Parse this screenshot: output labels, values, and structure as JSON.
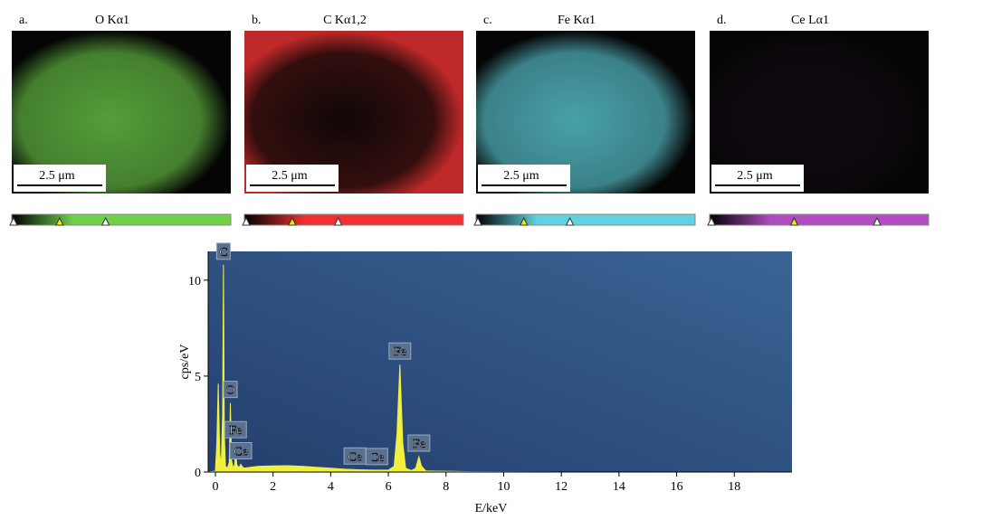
{
  "panels": [
    {
      "label": "a.",
      "title": "O Kα1",
      "scale": "2.5 μm",
      "color": "#6fd04a"
    },
    {
      "label": "b.",
      "title": "C Kα1,2",
      "scale": "2.5 μm",
      "color": "#ee3232"
    },
    {
      "label": "c.",
      "title": "Fe Kα1",
      "scale": "2.5 μm",
      "color": "#5fd4e0"
    },
    {
      "label": "d.",
      "title": "Ce Lα1",
      "scale": "2.5 μm",
      "color": "#b04cc0"
    }
  ],
  "chart_data": {
    "type": "area",
    "xlabel": "E/keV",
    "ylabel": "cps/eV",
    "color": "#f0f040",
    "x": [
      -0.25,
      0.0,
      0.05,
      0.1,
      0.15,
      0.2,
      0.25,
      0.28,
      0.31,
      0.35,
      0.42,
      0.48,
      0.52,
      0.56,
      0.62,
      0.67,
      0.7,
      0.74,
      0.8,
      0.85,
      0.88,
      0.92,
      1.0,
      1.2,
      1.5,
      2.0,
      2.5,
      3.0,
      3.5,
      4.0,
      4.5,
      5.0,
      5.5,
      6.0,
      6.2,
      6.3,
      6.4,
      6.5,
      6.6,
      6.8,
      6.95,
      7.06,
      7.15,
      7.3,
      7.6,
      8.0,
      9.0,
      10,
      12,
      20
    ],
    "values": [
      0,
      0.05,
      1.5,
      4.6,
      1.0,
      0.3,
      3.0,
      10.8,
      2.0,
      0.3,
      0.2,
      0.5,
      3.6,
      0.6,
      0.2,
      0.4,
      1.5,
      0.4,
      0.25,
      0.3,
      0.4,
      0.3,
      0.2,
      0.25,
      0.3,
      0.32,
      0.33,
      0.3,
      0.25,
      0.2,
      0.15,
      0.12,
      0.1,
      0.1,
      0.3,
      2.0,
      5.6,
      1.5,
      0.2,
      0.08,
      0.2,
      0.8,
      0.3,
      0.06,
      0.05,
      0.04,
      0.02,
      0.01,
      0,
      0
    ],
    "annotations": [
      {
        "text": "C",
        "x": 0.28
      },
      {
        "text": "O",
        "x": 0.52
      },
      {
        "text": "Fe",
        "x": 0.7
      },
      {
        "text": "Ce",
        "x": 0.88
      },
      {
        "text": "Ce",
        "x": 4.84
      },
      {
        "text": "Ce",
        "x": 5.6
      },
      {
        "text": "Fe",
        "x": 6.4
      },
      {
        "text": "Fe",
        "x": 7.06
      }
    ],
    "xlim": [
      -0.25,
      20
    ],
    "ylim": [
      0,
      11.5
    ],
    "xticks": [
      0,
      2,
      4,
      6,
      8,
      10,
      12,
      14,
      16,
      18
    ],
    "yticks": [
      0,
      5,
      10
    ]
  }
}
